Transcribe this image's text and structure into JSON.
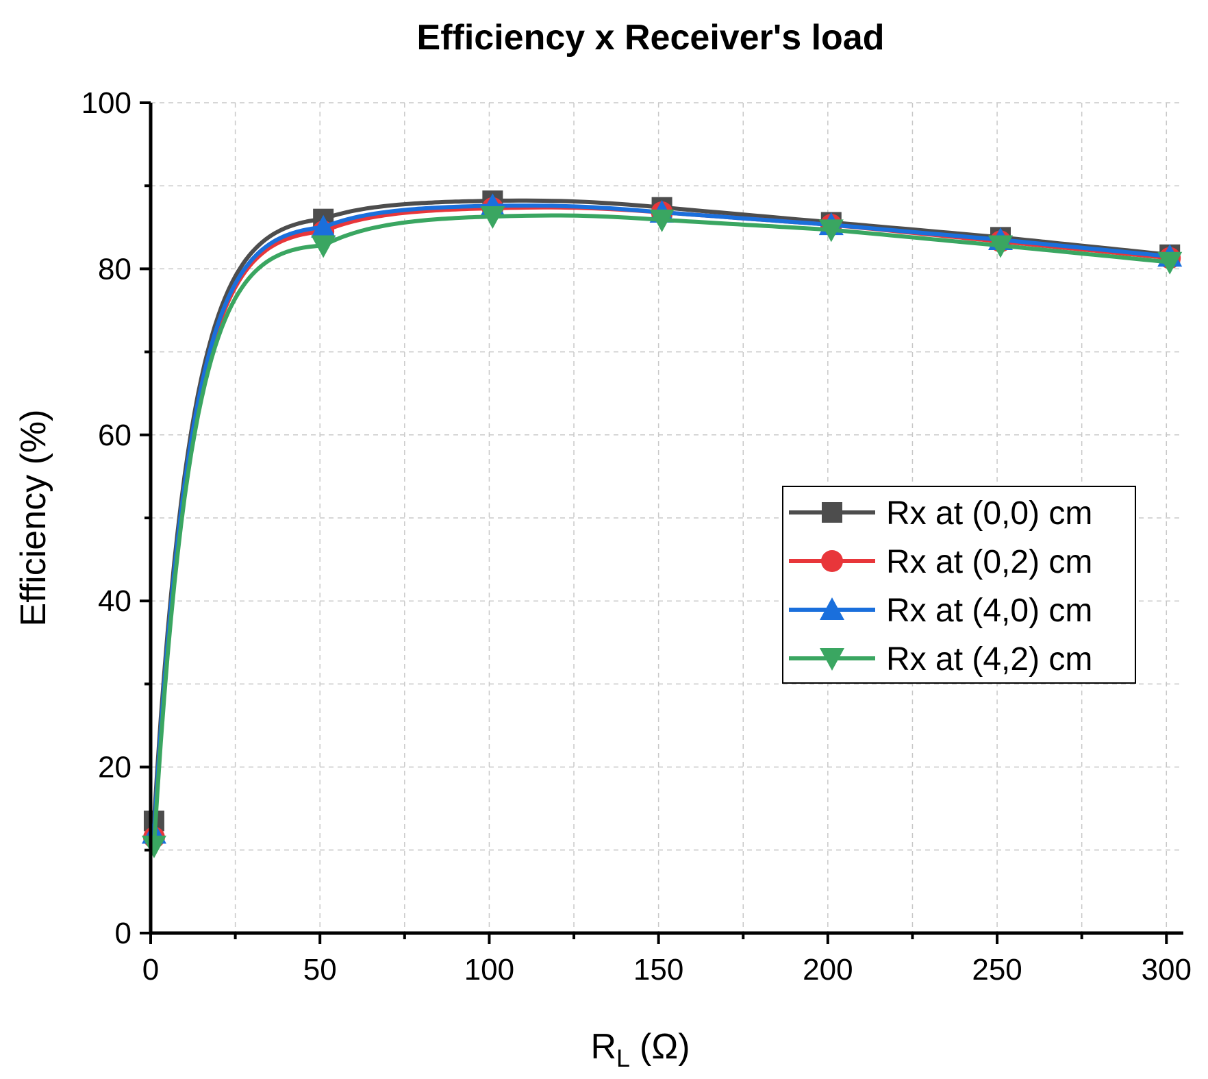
{
  "chart_data": {
    "type": "line",
    "title": "Efficiency x Receiver's load",
    "xlabel": "R",
    "xlabel_subscript": "L",
    "xlabel_unit": "(Ω)",
    "ylabel": "Efficiency (%)",
    "xlim": [
      0,
      305
    ],
    "ylim": [
      0,
      100
    ],
    "x_ticks": [
      0,
      50,
      100,
      150,
      200,
      250,
      300
    ],
    "x_tick_labels": [
      "0",
      "50",
      "100",
      "150",
      "200",
      "250",
      "300"
    ],
    "y_ticks": [
      0,
      20,
      40,
      60,
      80,
      100
    ],
    "y_tick_labels": [
      "0",
      "20",
      "40",
      "60",
      "80",
      "100"
    ],
    "grid": true,
    "legend_position": "center-right",
    "x": [
      1,
      51,
      101,
      151,
      201,
      251,
      301
    ],
    "series": [
      {
        "name": "Rx at (0,0) cm",
        "color": "#4d4d4d",
        "marker": "square",
        "values": [
          13.5,
          86.0,
          88.2,
          87.4,
          85.6,
          83.8,
          81.7
        ]
      },
      {
        "name": "Rx at (0,2) cm",
        "color": "#e8363a",
        "marker": "circle",
        "values": [
          11.5,
          84.5,
          87.3,
          86.8,
          85.3,
          83.3,
          81.3
        ]
      },
      {
        "name": "Rx at (4,0) cm",
        "color": "#1a6fdc",
        "marker": "triangle-up",
        "values": [
          12.0,
          85.0,
          87.6,
          86.8,
          85.3,
          83.5,
          81.5
        ]
      },
      {
        "name": "Rx at (4,2) cm",
        "color": "#3aa661",
        "marker": "triangle-down",
        "values": [
          10.5,
          82.8,
          86.3,
          85.9,
          84.7,
          82.8,
          80.8
        ]
      }
    ]
  }
}
